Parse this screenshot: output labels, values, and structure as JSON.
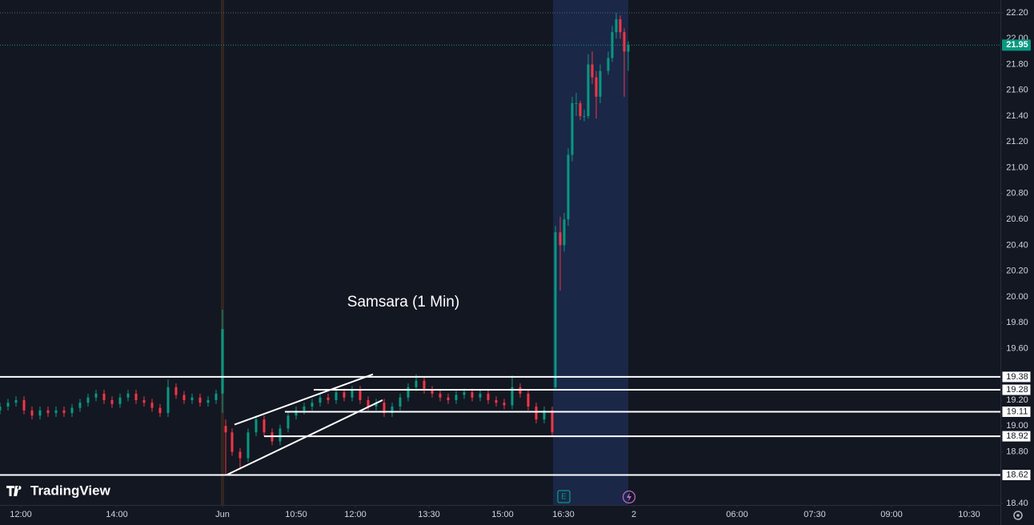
{
  "chart_data": {
    "type": "candlestick",
    "title": "Samsara (1 Min)",
    "logo": "TradingView",
    "earnings_marker": "E",
    "up_color": "#089981",
    "down_color": "#f23645",
    "grid": false,
    "xlim": [
      0,
      250
    ],
    "ylim": [
      18.4,
      22.2
    ],
    "xticks": [
      {
        "value": 5.2,
        "label": "12:00"
      },
      {
        "value": 29.2,
        "label": "14:00"
      },
      {
        "value": 55.6,
        "label": "Jun"
      },
      {
        "value": 74,
        "label": "10:50"
      },
      {
        "value": 88.8,
        "label": "12:00"
      },
      {
        "value": 107.2,
        "label": "13:30"
      },
      {
        "value": 125.6,
        "label": "15:00"
      },
      {
        "value": 140.8,
        "label": "16:30"
      },
      {
        "value": 158.4,
        "label": "2"
      },
      {
        "value": 184.2,
        "label": "06:00"
      },
      {
        "value": 203.6,
        "label": "07:30"
      },
      {
        "value": 222.8,
        "label": "09:00"
      },
      {
        "value": 242.2,
        "label": "10:30"
      }
    ],
    "yticks": [
      {
        "value": 22.2,
        "label": "22.20"
      },
      {
        "value": 22.0,
        "label": "22.00"
      },
      {
        "value": 21.8,
        "label": "21.80"
      },
      {
        "value": 21.6,
        "label": "21.60"
      },
      {
        "value": 21.4,
        "label": "21.40"
      },
      {
        "value": 21.2,
        "label": "21.20"
      },
      {
        "value": 21.0,
        "label": "21.00"
      },
      {
        "value": 20.8,
        "label": "20.80"
      },
      {
        "value": 20.6,
        "label": "20.60"
      },
      {
        "value": 20.4,
        "label": "20.40"
      },
      {
        "value": 20.2,
        "label": "20.20"
      },
      {
        "value": 20.0,
        "label": "20.00"
      },
      {
        "value": 19.8,
        "label": "19.80"
      },
      {
        "value": 19.6,
        "label": "19.60"
      },
      {
        "value": 19.2,
        "label": "19.20"
      },
      {
        "value": 19.0,
        "label": "19.00"
      },
      {
        "value": 18.8,
        "label": "18.80"
      },
      {
        "value": 18.4,
        "label": "18.40"
      }
    ],
    "session_break": 55.6,
    "extended_session": [
      138.2,
      157
    ],
    "current_price": 21.95,
    "levels": [
      {
        "value": 19.38,
        "x_start": 0
      },
      {
        "value": 19.28,
        "x_start": 78.4
      },
      {
        "value": 19.11,
        "x_start": 71.2
      },
      {
        "value": 18.92,
        "x_start": 66
      },
      {
        "value": 18.62,
        "x_start": 0
      }
    ],
    "trend_lines": [
      {
        "x": [
          58.6,
          93.2
        ],
        "y": [
          19.01,
          19.4
        ]
      },
      {
        "x": [
          56.6,
          95.6
        ],
        "y": [
          18.62,
          19.2
        ]
      }
    ],
    "x": [
      0,
      2,
      4,
      6,
      8,
      10,
      12,
      14,
      16,
      18,
      20,
      22,
      24,
      26,
      28,
      30,
      32,
      34,
      36,
      38,
      40,
      42,
      44,
      46,
      48,
      50,
      52,
      54,
      55.6,
      56.4,
      58,
      60,
      62,
      64,
      66,
      68,
      70,
      72,
      74,
      76,
      78,
      80,
      82,
      84,
      86,
      88,
      90,
      92,
      94,
      96,
      98,
      100,
      102,
      104,
      106,
      108,
      110,
      112,
      114,
      116,
      118,
      120,
      122,
      124,
      126,
      128,
      130,
      132,
      134,
      136,
      138,
      138.8,
      140,
      141,
      142,
      143,
      144,
      145,
      146,
      147,
      148,
      149,
      150,
      152,
      153,
      154,
      155,
      156,
      157
    ],
    "candles": [
      [
        19.12,
        19.18,
        19.09,
        19.15
      ],
      [
        19.15,
        19.21,
        19.12,
        19.18
      ],
      [
        19.18,
        19.23,
        19.15,
        19.2
      ],
      [
        19.2,
        19.23,
        19.09,
        19.12
      ],
      [
        19.12,
        19.15,
        19.05,
        19.08
      ],
      [
        19.08,
        19.15,
        19.05,
        19.12
      ],
      [
        19.12,
        19.15,
        19.07,
        19.1
      ],
      [
        19.1,
        19.15,
        19.07,
        19.12
      ],
      [
        19.12,
        19.15,
        19.07,
        19.1
      ],
      [
        19.1,
        19.17,
        19.07,
        19.14
      ],
      [
        19.14,
        19.21,
        19.11,
        19.18
      ],
      [
        19.18,
        19.25,
        19.15,
        19.22
      ],
      [
        19.22,
        19.28,
        19.19,
        19.25
      ],
      [
        19.25,
        19.28,
        19.17,
        19.2
      ],
      [
        19.2,
        19.23,
        19.14,
        19.17
      ],
      [
        19.17,
        19.25,
        19.14,
        19.22
      ],
      [
        19.22,
        19.28,
        19.19,
        19.25
      ],
      [
        19.25,
        19.28,
        19.17,
        19.2
      ],
      [
        19.2,
        19.23,
        19.15,
        19.18
      ],
      [
        19.18,
        19.21,
        19.11,
        19.14
      ],
      [
        19.14,
        19.17,
        19.07,
        19.1
      ],
      [
        19.1,
        19.36,
        19.07,
        19.3
      ],
      [
        19.3,
        19.33,
        19.21,
        19.24
      ],
      [
        19.24,
        19.27,
        19.17,
        19.2
      ],
      [
        19.2,
        19.25,
        19.17,
        19.22
      ],
      [
        19.22,
        19.25,
        19.15,
        19.18
      ],
      [
        19.18,
        19.23,
        19.15,
        19.2
      ],
      [
        19.2,
        19.28,
        19.17,
        19.25
      ],
      [
        19.25,
        19.9,
        19.1,
        19.75
      ],
      [
        19.0,
        19.05,
        18.62,
        18.95
      ],
      [
        18.95,
        18.98,
        18.77,
        18.8
      ],
      [
        18.8,
        18.83,
        18.66,
        18.75
      ],
      [
        18.75,
        18.98,
        18.72,
        18.95
      ],
      [
        18.95,
        19.08,
        18.92,
        19.05
      ],
      [
        19.05,
        19.08,
        18.92,
        18.95
      ],
      [
        18.95,
        18.98,
        18.85,
        18.88
      ],
      [
        18.88,
        19.01,
        18.85,
        18.98
      ],
      [
        18.98,
        19.11,
        18.95,
        19.08
      ],
      [
        19.08,
        19.15,
        19.05,
        19.12
      ],
      [
        19.12,
        19.18,
        19.09,
        19.15
      ],
      [
        19.15,
        19.21,
        19.12,
        19.18
      ],
      [
        19.18,
        19.25,
        19.15,
        19.22
      ],
      [
        19.22,
        19.25,
        19.17,
        19.2
      ],
      [
        19.2,
        19.29,
        19.17,
        19.26
      ],
      [
        19.26,
        19.29,
        19.19,
        19.22
      ],
      [
        19.22,
        19.31,
        19.19,
        19.28
      ],
      [
        19.28,
        19.31,
        19.17,
        19.2
      ],
      [
        19.2,
        19.23,
        19.12,
        19.15
      ],
      [
        19.15,
        19.21,
        19.12,
        19.18
      ],
      [
        19.18,
        19.21,
        19.07,
        19.1
      ],
      [
        19.1,
        19.18,
        19.07,
        19.15
      ],
      [
        19.15,
        19.25,
        19.12,
        19.22
      ],
      [
        19.22,
        19.33,
        19.19,
        19.3
      ],
      [
        19.3,
        19.4,
        19.27,
        19.35
      ],
      [
        19.35,
        19.38,
        19.25,
        19.28
      ],
      [
        19.28,
        19.31,
        19.22,
        19.25
      ],
      [
        19.25,
        19.28,
        19.19,
        19.22
      ],
      [
        19.22,
        19.25,
        19.17,
        19.2
      ],
      [
        19.2,
        19.27,
        19.17,
        19.24
      ],
      [
        19.24,
        19.29,
        19.21,
        19.26
      ],
      [
        19.26,
        19.29,
        19.19,
        19.22
      ],
      [
        19.22,
        19.28,
        19.19,
        19.25
      ],
      [
        19.25,
        19.28,
        19.17,
        19.2
      ],
      [
        19.2,
        19.23,
        19.15,
        19.18
      ],
      [
        19.18,
        19.21,
        19.13,
        19.16
      ],
      [
        19.16,
        19.39,
        19.13,
        19.3
      ],
      [
        19.3,
        19.33,
        19.22,
        19.25
      ],
      [
        19.25,
        19.28,
        19.12,
        19.15
      ],
      [
        19.15,
        19.18,
        19.02,
        19.05
      ],
      [
        19.05,
        19.15,
        19.02,
        19.12
      ],
      [
        19.12,
        19.15,
        18.92,
        18.95
      ],
      [
        19.3,
        20.55,
        19.28,
        20.5
      ],
      [
        20.5,
        20.62,
        20.05,
        20.4
      ],
      [
        20.4,
        20.65,
        20.35,
        20.6
      ],
      [
        20.6,
        21.15,
        20.55,
        21.1
      ],
      [
        21.1,
        21.55,
        21.05,
        21.5
      ],
      [
        21.5,
        21.58,
        21.4,
        21.5
      ],
      [
        21.5,
        21.52,
        21.37,
        21.4
      ],
      [
        21.4,
        21.45,
        21.36,
        21.4
      ],
      [
        21.4,
        21.88,
        21.38,
        21.8
      ],
      [
        21.8,
        21.9,
        21.65,
        21.7
      ],
      [
        21.7,
        21.75,
        21.38,
        21.55
      ],
      [
        21.55,
        21.8,
        21.5,
        21.75
      ],
      [
        21.75,
        21.9,
        21.72,
        21.85
      ],
      [
        21.85,
        22.1,
        21.82,
        22.05
      ],
      [
        22.05,
        22.2,
        22.0,
        22.15
      ],
      [
        22.15,
        22.18,
        22.0,
        22.05
      ],
      [
        22.05,
        22.08,
        21.55,
        21.9
      ],
      [
        21.9,
        21.98,
        21.75,
        21.95
      ]
    ]
  }
}
